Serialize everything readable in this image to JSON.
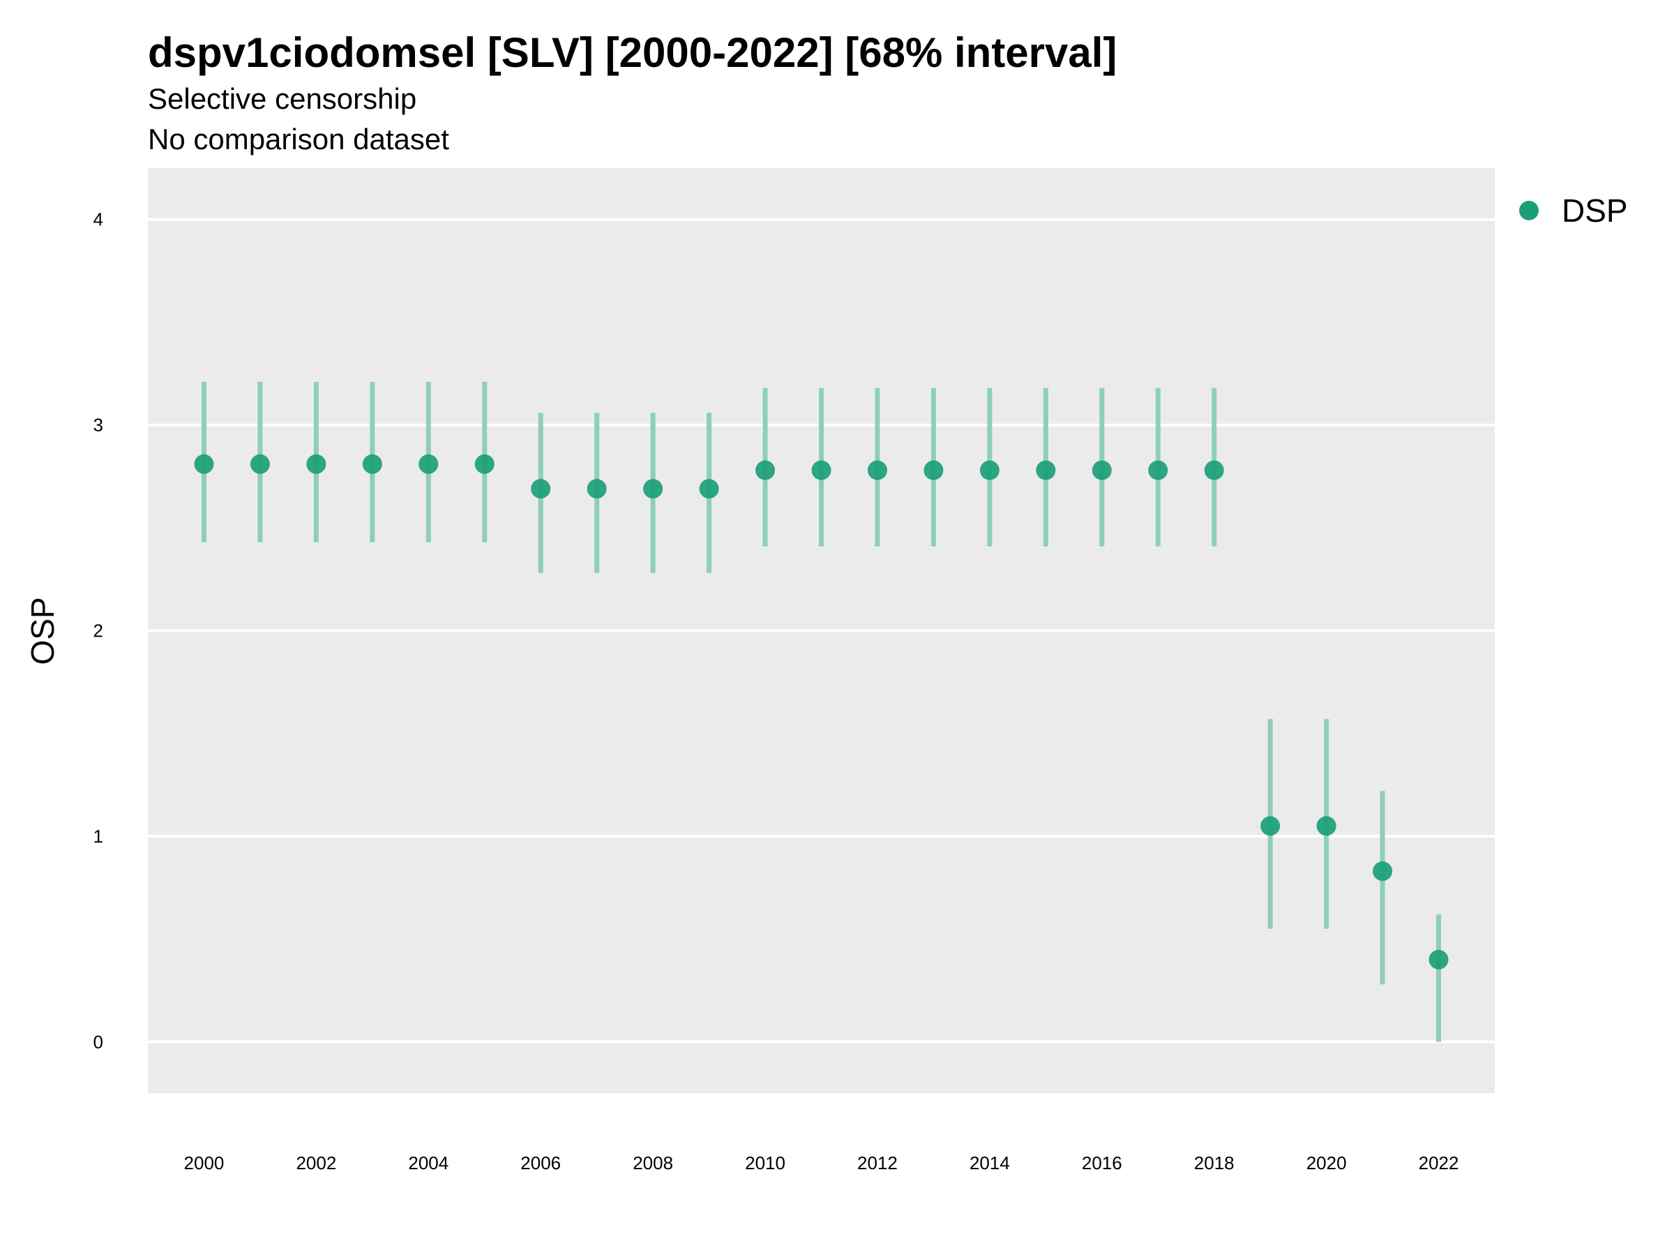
{
  "chart_data": {
    "type": "scatter",
    "title": "dspv1ciodomsel [SLV] [2000-2022] [68% interval]",
    "subtitle": "Selective censorship",
    "subtitle2": "No comparison dataset",
    "xlabel": "",
    "ylabel": "OSP",
    "x_tick_labels": [
      "2000",
      "2002",
      "2004",
      "2006",
      "2008",
      "2010",
      "2012",
      "2014",
      "2016",
      "2018",
      "2020",
      "2022"
    ],
    "y_tick_labels": [
      "0",
      "1",
      "2",
      "3",
      "4"
    ],
    "xlim": [
      1999,
      2023
    ],
    "ylim": [
      -0.25,
      4.25
    ],
    "grid": true,
    "legend_position": "right",
    "colors": {
      "point": "#1b9e77",
      "interval": "#8fcfb7",
      "panel": "#ebebeb",
      "grid": "#ffffff"
    },
    "series": [
      {
        "name": "DSP",
        "x": [
          2000,
          2001,
          2002,
          2003,
          2004,
          2005,
          2006,
          2007,
          2008,
          2009,
          2010,
          2011,
          2012,
          2013,
          2014,
          2015,
          2016,
          2017,
          2018,
          2019,
          2020,
          2021,
          2022
        ],
        "y": [
          2.81,
          2.81,
          2.81,
          2.81,
          2.81,
          2.81,
          2.69,
          2.69,
          2.69,
          2.69,
          2.78,
          2.78,
          2.78,
          2.78,
          2.78,
          2.78,
          2.78,
          2.78,
          2.78,
          1.05,
          1.05,
          0.83,
          0.4
        ],
        "lower": [
          2.43,
          2.43,
          2.43,
          2.43,
          2.43,
          2.43,
          2.28,
          2.28,
          2.28,
          2.28,
          2.41,
          2.41,
          2.41,
          2.41,
          2.41,
          2.41,
          2.41,
          2.41,
          2.41,
          0.55,
          0.55,
          0.28,
          0.0
        ],
        "upper": [
          3.21,
          3.21,
          3.21,
          3.21,
          3.21,
          3.21,
          3.06,
          3.06,
          3.06,
          3.06,
          3.18,
          3.18,
          3.18,
          3.18,
          3.18,
          3.18,
          3.18,
          3.18,
          3.18,
          1.57,
          1.57,
          1.22,
          0.62
        ]
      }
    ]
  }
}
